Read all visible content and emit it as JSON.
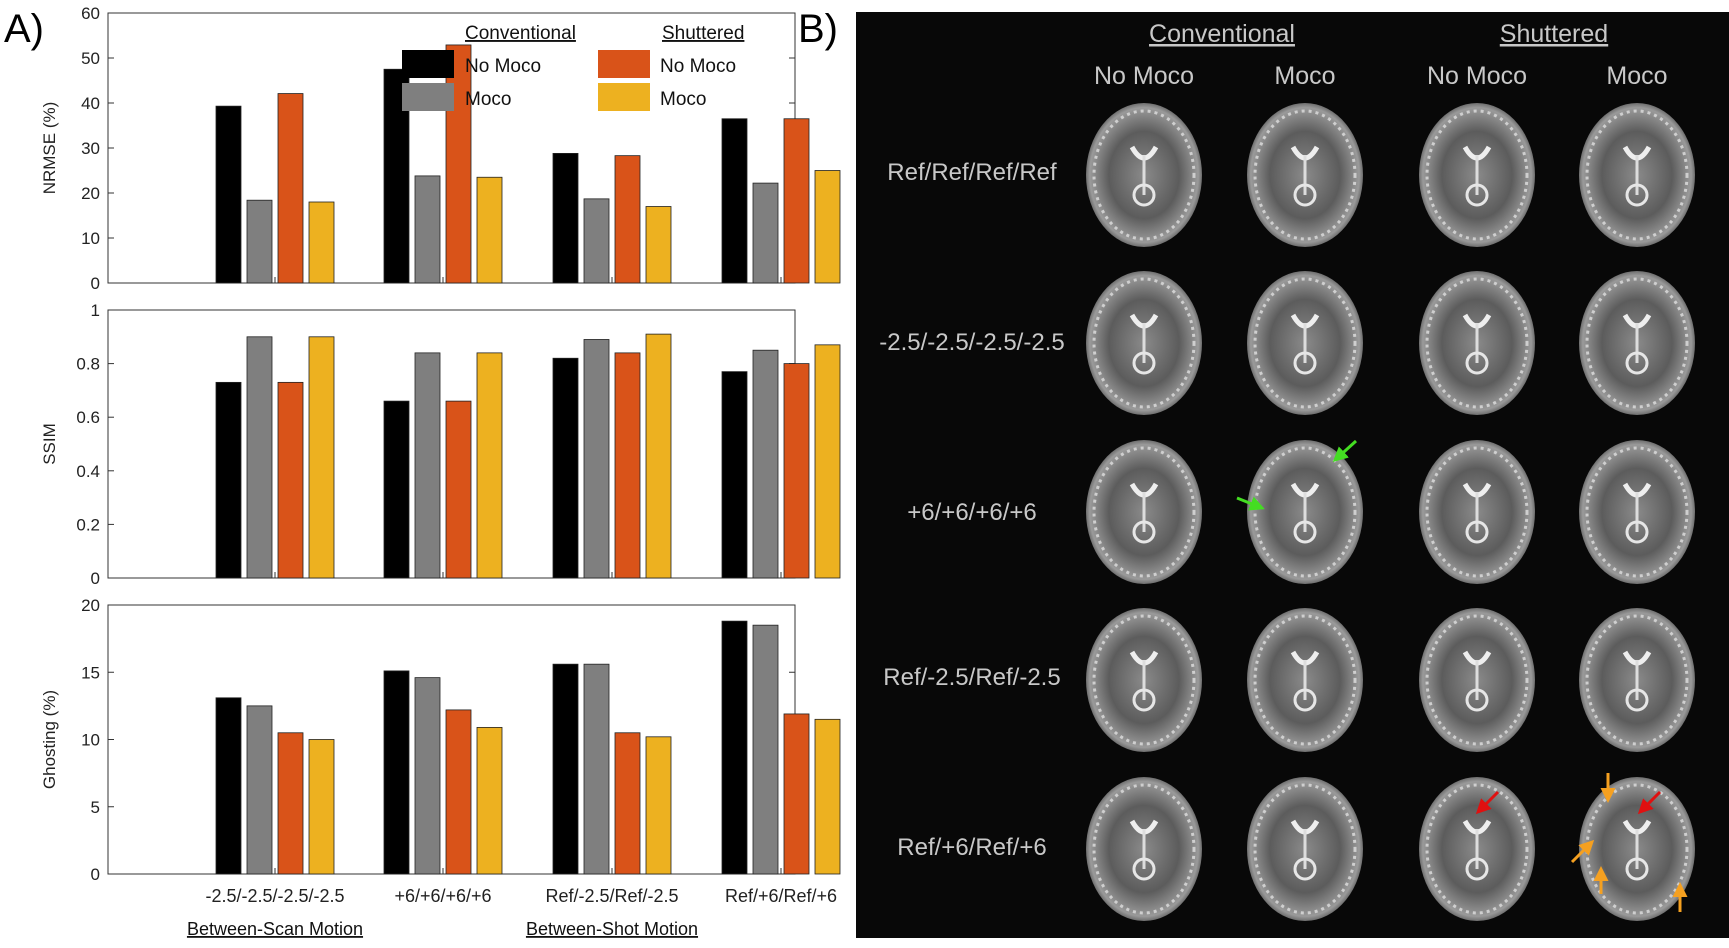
{
  "panel_a_label": "A)",
  "panel_b_label": "B)",
  "chart_data": [
    {
      "type": "bar",
      "ylabel": "NRMSE (%)",
      "ylim": [
        0,
        60
      ],
      "yticks": [
        "0",
        "10",
        "20",
        "30",
        "40",
        "50",
        "60"
      ],
      "categories": [
        "-2.5/-2.5/-2.5/-2.5",
        "+6/+6/+6/+6",
        "Ref/-2.5/Ref/-2.5",
        "Ref/+6/Ref/+6"
      ],
      "series": [
        {
          "name": "No Moco",
          "group": "Conventional",
          "color": "#000000",
          "values": [
            39.3,
            47.5,
            28.8,
            36.5
          ]
        },
        {
          "name": "Moco",
          "group": "Conventional",
          "color": "#7f7f7f",
          "values": [
            18.4,
            23.8,
            18.7,
            22.2
          ]
        },
        {
          "name": "No Moco",
          "group": "Shuttered",
          "color": "#d95319",
          "values": [
            42.1,
            52.9,
            28.3,
            36.5
          ]
        },
        {
          "name": "Moco",
          "group": "Shuttered",
          "color": "#edb120",
          "values": [
            18.0,
            23.5,
            17.0,
            25.0
          ]
        }
      ],
      "legend": {
        "placement": "top-right",
        "headers": [
          "Conventional",
          "Shuttered"
        ],
        "entries": [
          "No Moco",
          "Moco",
          "No Moco",
          "Moco"
        ]
      },
      "grid": false
    },
    {
      "type": "bar",
      "ylabel": "SSIM",
      "ylim": [
        0,
        1
      ],
      "yticks": [
        "0",
        "0.2",
        "0.4",
        "0.6",
        "0.8",
        "1"
      ],
      "categories": [
        "-2.5/-2.5/-2.5/-2.5",
        "+6/+6/+6/+6",
        "Ref/-2.5/Ref/-2.5",
        "Ref/+6/Ref/+6"
      ],
      "series": [
        {
          "name": "No Moco",
          "group": "Conventional",
          "color": "#000000",
          "values": [
            0.73,
            0.66,
            0.82,
            0.77
          ]
        },
        {
          "name": "Moco",
          "group": "Conventional",
          "color": "#7f7f7f",
          "values": [
            0.9,
            0.84,
            0.89,
            0.85
          ]
        },
        {
          "name": "No Moco",
          "group": "Shuttered",
          "color": "#d95319",
          "values": [
            0.73,
            0.66,
            0.84,
            0.8
          ]
        },
        {
          "name": "Moco",
          "group": "Shuttered",
          "color": "#edb120",
          "values": [
            0.9,
            0.84,
            0.91,
            0.87
          ]
        }
      ],
      "grid": false
    },
    {
      "type": "bar",
      "ylabel": "Ghosting (%)",
      "ylim": [
        0,
        20
      ],
      "yticks": [
        "0",
        "5",
        "10",
        "15",
        "20"
      ],
      "categories": [
        "-2.5/-2.5/-2.5/-2.5",
        "+6/+6/+6/+6",
        "Ref/-2.5/Ref/-2.5",
        "Ref/+6/Ref/+6"
      ],
      "series": [
        {
          "name": "No Moco",
          "group": "Conventional",
          "color": "#000000",
          "values": [
            13.1,
            15.1,
            15.6,
            18.8
          ]
        },
        {
          "name": "Moco",
          "group": "Conventional",
          "color": "#7f7f7f",
          "values": [
            12.5,
            14.6,
            15.6,
            18.5
          ]
        },
        {
          "name": "No Moco",
          "group": "Shuttered",
          "color": "#d95319",
          "values": [
            10.5,
            12.2,
            10.5,
            11.9
          ]
        },
        {
          "name": "Moco",
          "group": "Shuttered",
          "color": "#edb120",
          "values": [
            10.0,
            10.9,
            10.2,
            11.5
          ]
        }
      ],
      "grid": false
    }
  ],
  "x_groups": [
    "Between-Scan Motion",
    "Between-Shot Motion"
  ],
  "image_grid": {
    "headers": [
      "Conventional",
      "Shuttered"
    ],
    "columns": [
      "No Moco",
      "Moco",
      "No Moco",
      "Moco"
    ],
    "rows": [
      "Ref/Ref/Ref/Ref",
      "-2.5/-2.5/-2.5/-2.5",
      "+6/+6/+6/+6",
      "Ref/-2.5/Ref/-2.5",
      "Ref/+6/Ref/+6"
    ],
    "arrow_colors": {
      "green": "#44dd22",
      "red": "#e01010",
      "orange": "#f5a020"
    }
  }
}
